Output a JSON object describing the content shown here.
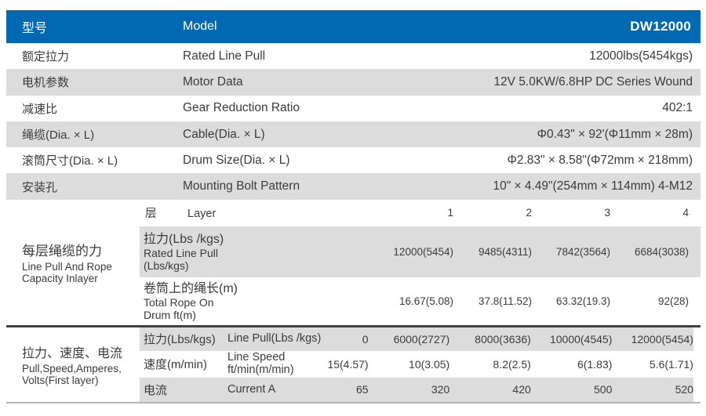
{
  "colors": {
    "header_blue": "#0069b2",
    "row_gray": "#dcdcdc",
    "divider_dark": "#404040",
    "bottom_border": "#b5b5b5"
  },
  "header": {
    "cn": "型号",
    "en": "Model",
    "model": "DW12000"
  },
  "specs": [
    {
      "cn": "额定拉力",
      "en": "Rated Line Pull",
      "value": "12000lbs(5454kgs)"
    },
    {
      "cn": "电机参数",
      "en": "Motor Data",
      "value": "12V 5.0KW/6.8HP DC Series Wound"
    },
    {
      "cn": "减速比",
      "en": "Gear Reduction Ratio",
      "value": "402:1"
    },
    {
      "cn": "绳缆(Dia. × L)",
      "en": "Cable(Dia. × L)",
      "value": "Φ0.43\" × 92'(Φ11mm × 28m)"
    },
    {
      "cn": "滚筒尺寸(Dia. × L)",
      "en": "Drum Size(Dia. × L)",
      "value": "Φ2.83\" × 8.58\"(Φ72mm × 218mm)"
    },
    {
      "cn": "安装孔",
      "en": "Mounting  Bolt  Pattern",
      "value": "10\" × 4.49\"(254mm × 114mm) 4-M12"
    }
  ],
  "layer_section": {
    "label": {
      "cn": "每层绳缆的力",
      "en_line1": "Line Pull And Rope",
      "en_line2": "Capacity Inlayer"
    },
    "layer_row": {
      "cn": "层",
      "en": "Layer",
      "values": [
        "1",
        "2",
        "3",
        "4"
      ]
    },
    "pull_row": {
      "cn": "拉力(Lbs /kgs)",
      "en_line1": "Rated Line Pull",
      "en_line2": "(Lbs/kgs)",
      "values": [
        "12000(5454)",
        "9485(4311)",
        "7842(3564)",
        "6684(3038)"
      ]
    },
    "rope_row": {
      "cn": "卷筒上的绳长(m)",
      "en_line1": "Total Rope On",
      "en_line2": "Drum ft(m)",
      "values": [
        "16.67(5.08)",
        "37.8(11.52)",
        "63.32(19.3)",
        "92(28)"
      ]
    }
  },
  "perf_section": {
    "label": {
      "cn": "拉力、速度、电流",
      "en_line1": "Pull,Speed,Amperes,",
      "en_line2": "Volts(First layer)"
    },
    "pull_row": {
      "cn": "拉力(Lbs/kgs)",
      "en": "Line Pull(Lbs /kgs)",
      "values": [
        "0",
        "6000(2727)",
        "8000(3636)",
        "10000(4545)",
        "12000(5454)"
      ]
    },
    "speed_row": {
      "cn": "速度(m/min)",
      "en_line1": "Line Speed",
      "en_line2": "ft/min(m/min)",
      "values": [
        "15(4.57)",
        "10(3.05)",
        "8.2(2.5)",
        "6(1.83)",
        "5.6(1.71)"
      ]
    },
    "current_row": {
      "cn": "电流",
      "en": "Current  A",
      "values": [
        "65",
        "320",
        "420",
        "500",
        "520"
      ]
    }
  }
}
